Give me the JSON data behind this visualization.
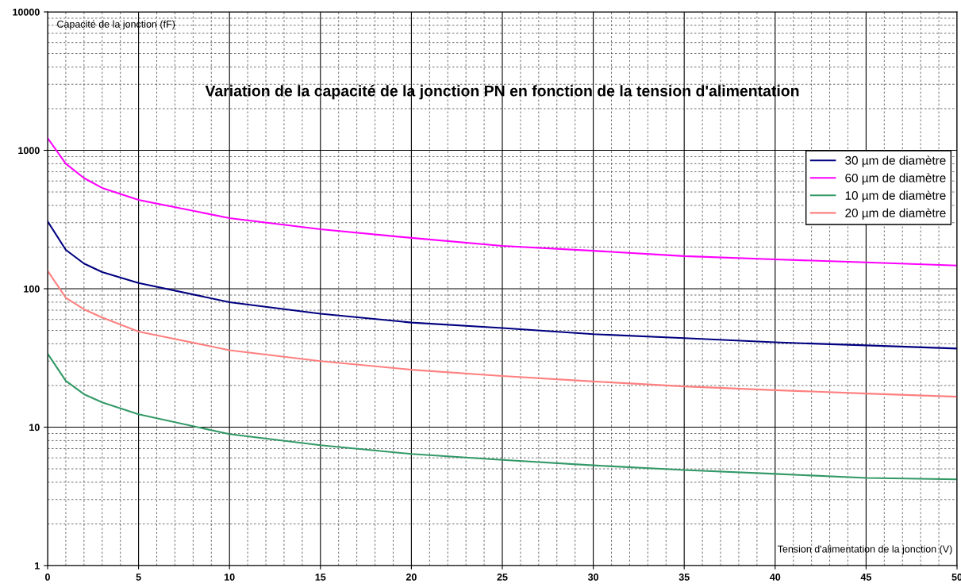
{
  "chart_data": {
    "type": "line",
    "title": "Variation de la capacité de la jonction PN en fonction de la tension d'alimentation",
    "xlabel": "Tension d'alimentation de la jonction (V)",
    "ylabel": "Capacité de la jonction (fF)",
    "x": [
      0,
      1,
      2,
      3,
      5,
      10,
      15,
      20,
      25,
      30,
      35,
      40,
      45,
      50
    ],
    "series": [
      {
        "name": "30 µm de diamètre",
        "color": "#000080",
        "values": [
          307,
          191,
          152,
          132,
          110,
          80,
          66,
          57,
          52,
          47,
          44,
          41,
          39,
          37
        ]
      },
      {
        "name": "60 µm de diamètre",
        "color": "#ff00ff",
        "values": [
          1227,
          800,
          630,
          535,
          438,
          324,
          269,
          233,
          204,
          188,
          172,
          163,
          155,
          147
        ]
      },
      {
        "name": "10 µm de diamètre",
        "color": "#339966",
        "values": [
          34,
          21.6,
          17.3,
          15.1,
          12.4,
          8.9,
          7.4,
          6.4,
          5.8,
          5.3,
          4.9,
          4.6,
          4.3,
          4.2
        ]
      },
      {
        "name": "20 µm de diamètre",
        "color": "#ff8080",
        "values": [
          135,
          86,
          71,
          62,
          49,
          36,
          30,
          26,
          23.4,
          21.4,
          19.7,
          18.5,
          17.5,
          16.6
        ]
      }
    ],
    "log": "y",
    "xlim": [
      0,
      50
    ],
    "ylim": [
      1,
      10000
    ],
    "xticks": [
      0,
      5,
      10,
      15,
      20,
      25,
      30,
      35,
      40,
      45,
      50
    ],
    "yticks": [
      1,
      10,
      100,
      1000,
      10000
    ],
    "grid": true,
    "legend": "top right",
    "marker": "none",
    "line_style": "solid"
  }
}
